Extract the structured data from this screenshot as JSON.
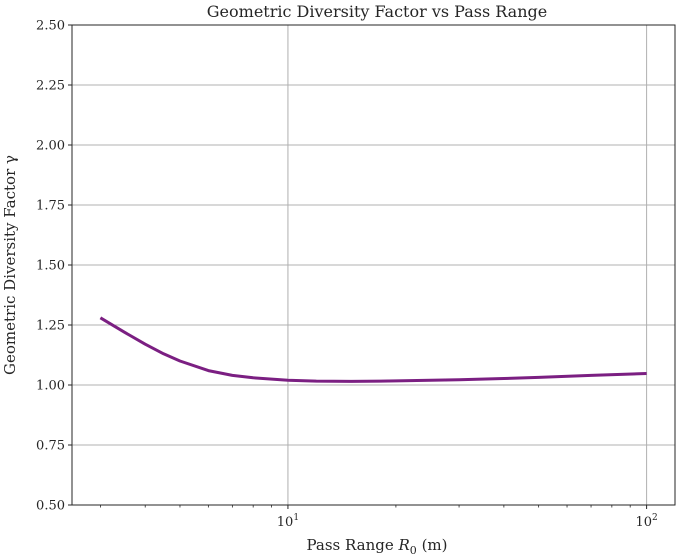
{
  "chart_data": {
    "type": "line",
    "title": "Geometric Diversity Factor vs Pass Range",
    "xlabel": "Pass Range R₀ (m)",
    "xlabel_parts": {
      "prefix": "Pass Range ",
      "var": "R",
      "sub": "0",
      "suffix": " (m)"
    },
    "ylabel": "Geometric Diversity Factor γ",
    "xscale": "log",
    "xlim": [
      2.5,
      120
    ],
    "ylim": [
      0.5,
      2.5
    ],
    "grid": true,
    "x_ticks": [
      {
        "value": 10,
        "base": "10",
        "exp": "1"
      },
      {
        "value": 100,
        "base": "10",
        "exp": "2"
      }
    ],
    "y_ticks": [
      0.5,
      0.75,
      1.0,
      1.25,
      1.5,
      1.75,
      2.0,
      2.25,
      2.5
    ],
    "y_tick_labels": [
      "0.50",
      "0.75",
      "1.00",
      "1.25",
      "1.50",
      "1.75",
      "2.00",
      "2.25",
      "2.50"
    ],
    "series": [
      {
        "color": "#7b1f82",
        "x": [
          3,
          3.5,
          4,
          4.5,
          5,
          6,
          7,
          8,
          10,
          12,
          15,
          20,
          30,
          40,
          50,
          70,
          100
        ],
        "y": [
          1.28,
          1.22,
          1.17,
          1.13,
          1.1,
          1.06,
          1.04,
          1.03,
          1.02,
          1.016,
          1.015,
          1.017,
          1.022,
          1.027,
          1.032,
          1.04,
          1.048
        ]
      }
    ]
  }
}
